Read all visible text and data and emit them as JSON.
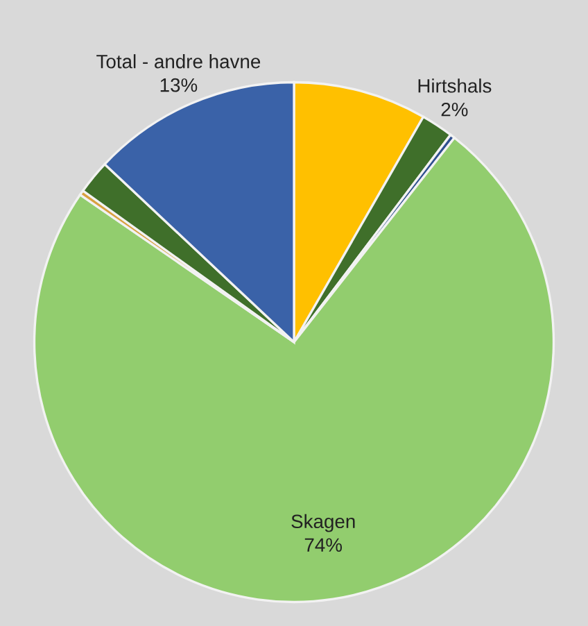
{
  "chart_data": {
    "type": "pie",
    "categories": [
      null,
      "Hirtshals",
      null,
      "Skagen",
      null,
      null,
      "Total - andre havne"
    ],
    "values": [
      8.3,
      2,
      0.3,
      74,
      0.3,
      2.1,
      13
    ],
    "colors": [
      "#ffc000",
      "#3f6f2a",
      "#2f4f8f",
      "#92cd6e",
      "#d9a040",
      "#3f6f2a",
      "#3a62a8"
    ],
    "value_labels": [
      null,
      "2%",
      null,
      "74%",
      null,
      null,
      "13%"
    ]
  }
}
